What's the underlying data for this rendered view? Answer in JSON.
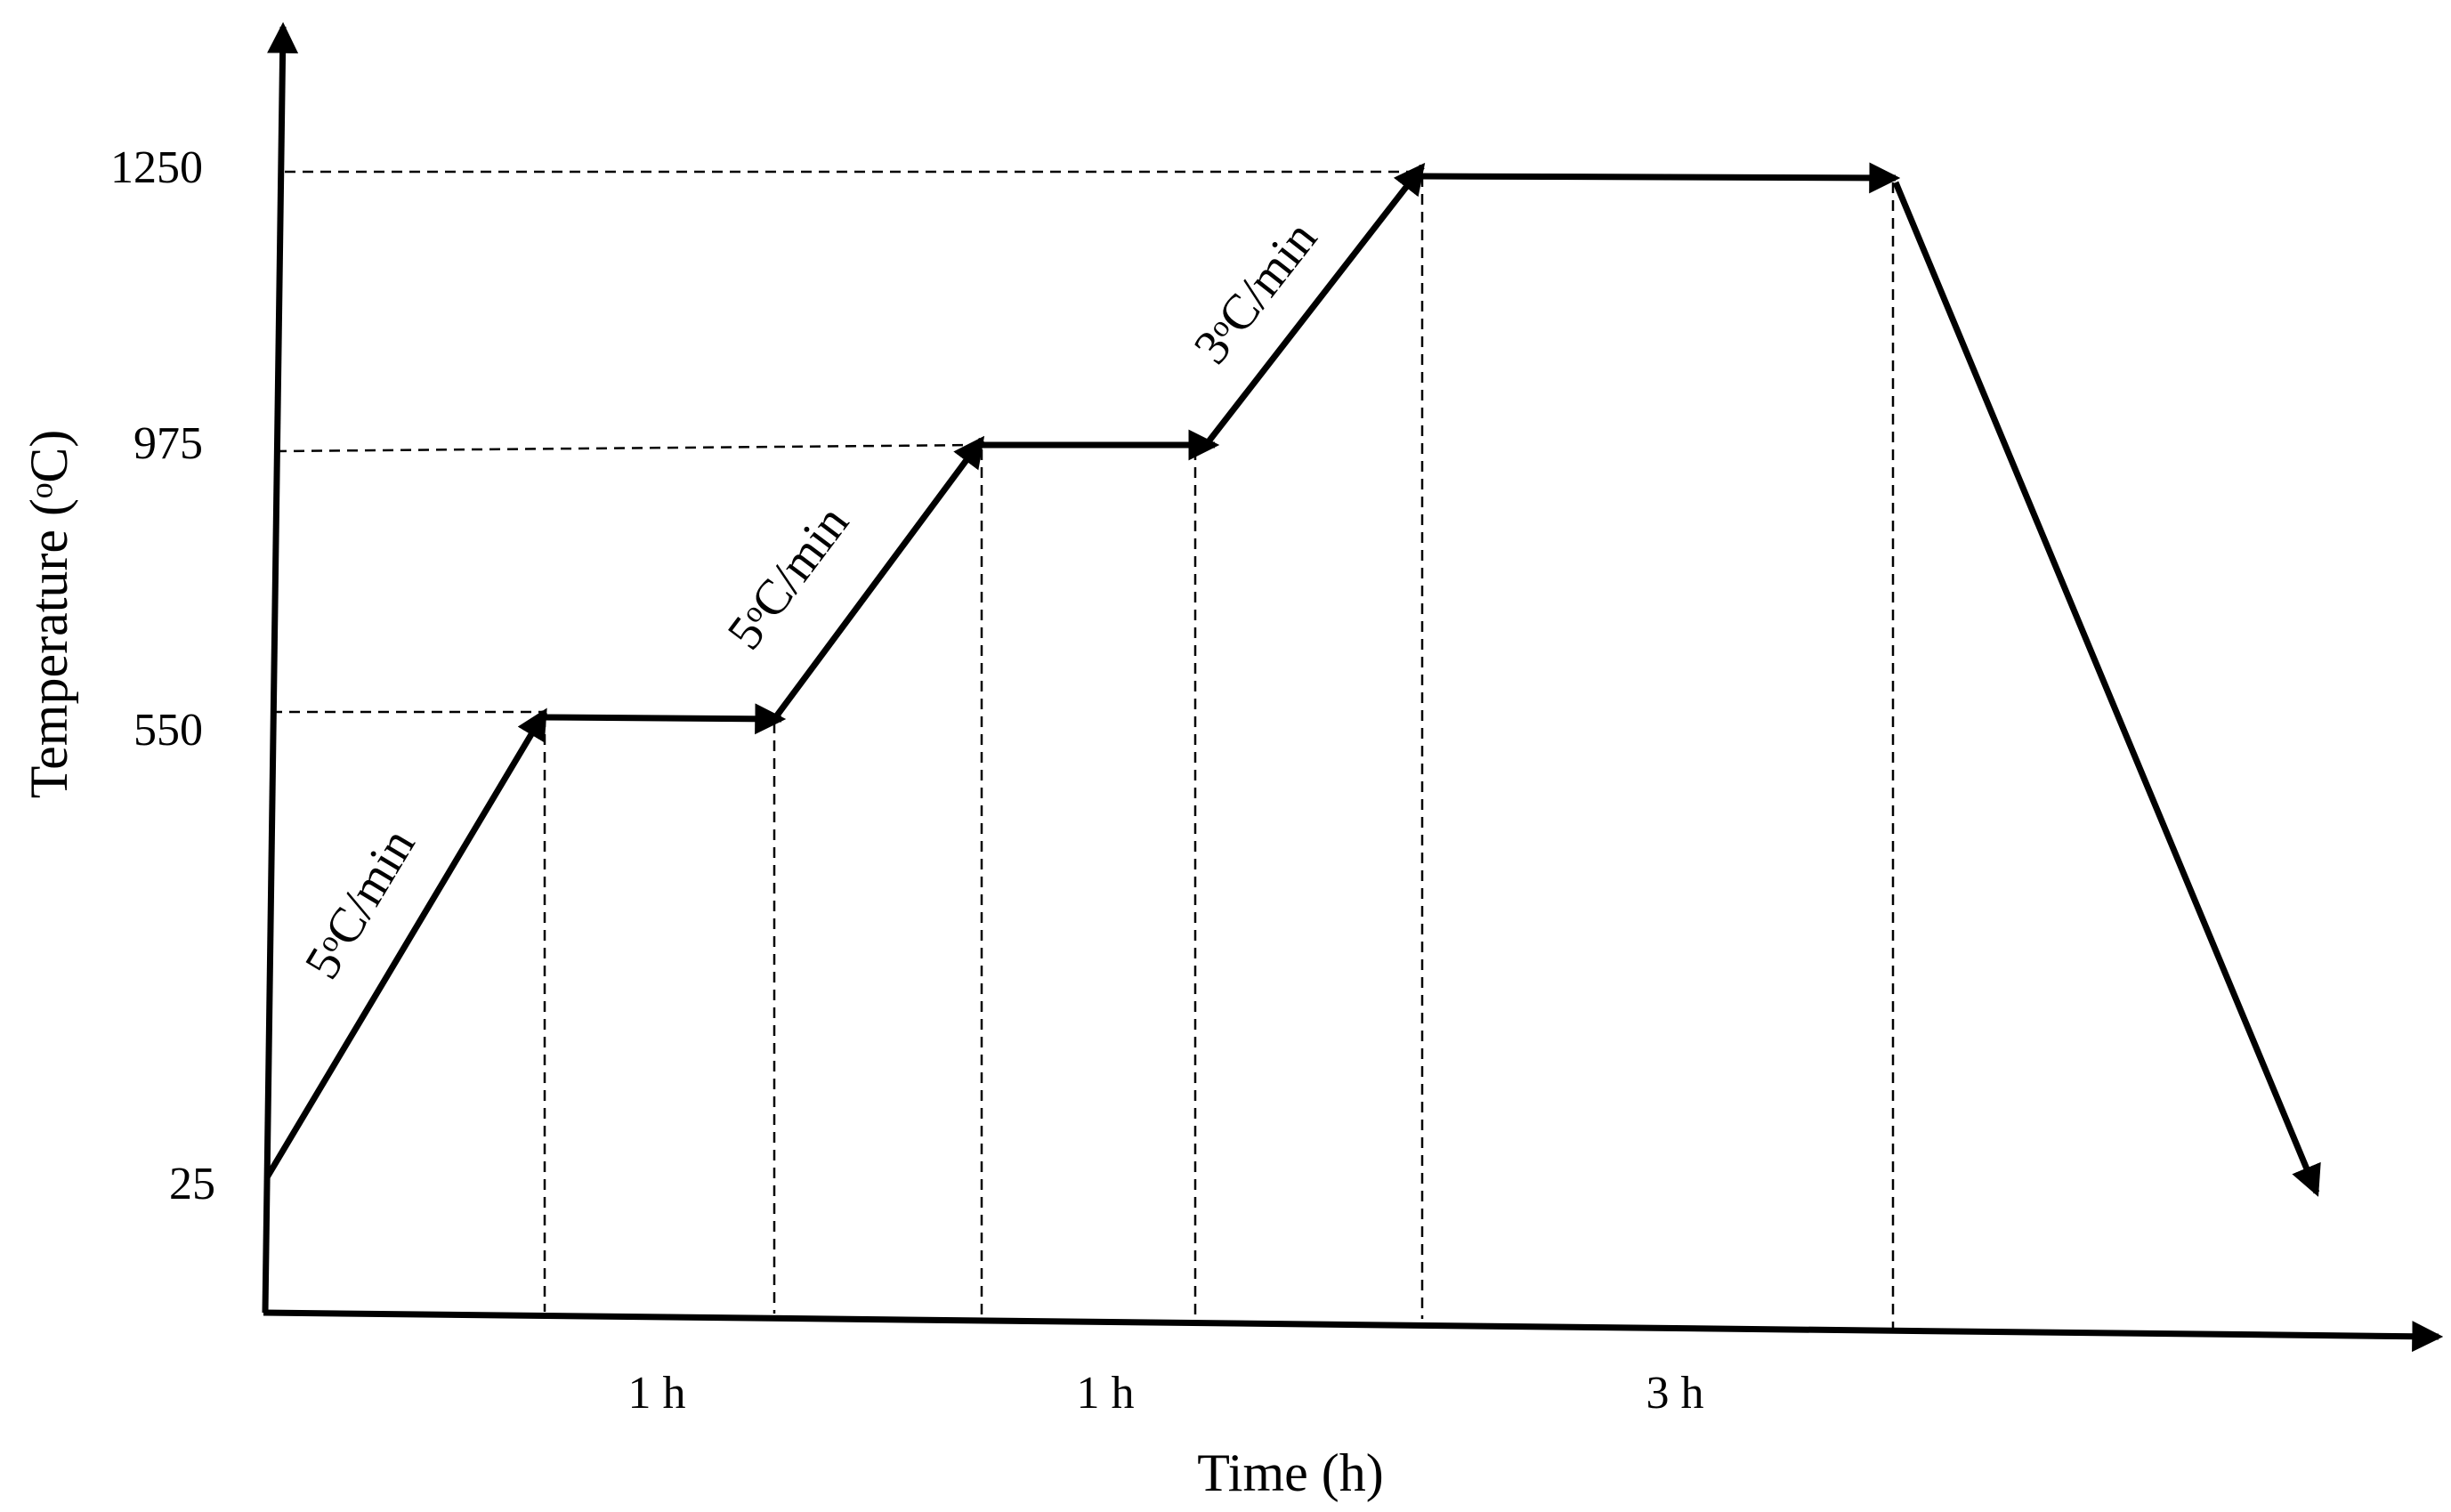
{
  "y_axis": {
    "title": "Temperature (ᵒC)",
    "ticks": [
      "1250",
      "975",
      "550",
      "25"
    ]
  },
  "x_axis": {
    "title": "Time (h)"
  },
  "profile": {
    "rate_labels": [
      "5ᵒC/min",
      "5ᵒC/min",
      "3ᵒC/min"
    ],
    "hold_durations": [
      "1 h",
      "1 h",
      "3 h"
    ],
    "temperatures": [
      25,
      550,
      975,
      1250
    ]
  },
  "colors": {
    "line": "#000000",
    "guide": "#000000"
  }
}
